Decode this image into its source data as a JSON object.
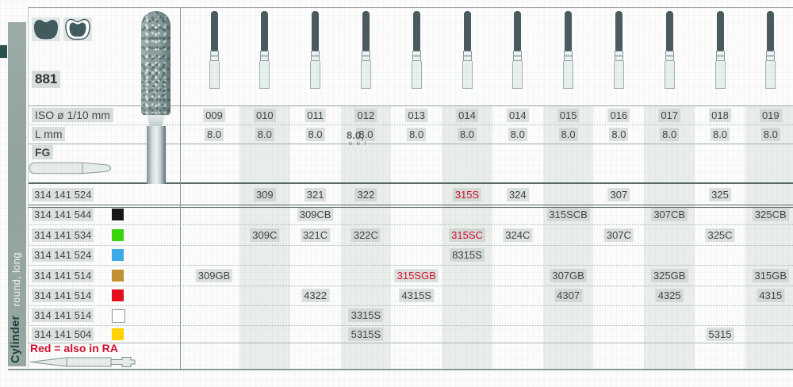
{
  "series": "881",
  "sidebar": {
    "category": "Cylinder",
    "subcategory": "round, long"
  },
  "header": {
    "iso_label": "ISO ø 1/10 mm",
    "l_label": "L mm",
    "shank_label": "FG",
    "iso_values": [
      "009",
      "010",
      "011",
      "012",
      "013",
      "014",
      "014",
      "015",
      "016",
      "017",
      "018",
      "019"
    ],
    "l_values": [
      "8.0",
      "8.0",
      "8.0",
      "8.0",
      "8.0",
      "8.0",
      "8.0",
      "8.0",
      "8.0",
      "8.0",
      "8.0",
      "8.0"
    ]
  },
  "artifacts": {
    "ghost_value": "8.0,",
    "ghost_dots": "o o I"
  },
  "code_rows": [
    {
      "code": "314 141 524",
      "swatch": null,
      "cells": [
        {
          "col": 1,
          "value": "309"
        },
        {
          "col": 2,
          "value": "321"
        },
        {
          "col": 3,
          "value": "322"
        },
        {
          "col": 5,
          "value": "315S",
          "red": true
        },
        {
          "col": 6,
          "value": "324"
        },
        {
          "col": 8,
          "value": "307"
        },
        {
          "col": 10,
          "value": "325"
        }
      ]
    },
    {
      "code": "314 141 544",
      "swatch": "#161616",
      "cells": [
        {
          "col": 2,
          "value": "309CB"
        },
        {
          "col": 7,
          "value": "315SCB"
        },
        {
          "col": 9,
          "value": "307CB"
        },
        {
          "col": 11,
          "value": "325CB"
        }
      ]
    },
    {
      "code": "314 141 534",
      "swatch": "#37d60c",
      "cells": [
        {
          "col": 1,
          "value": "309C"
        },
        {
          "col": 2,
          "value": "321C"
        },
        {
          "col": 3,
          "value": "322C"
        },
        {
          "col": 5,
          "value": "315SC",
          "red": true
        },
        {
          "col": 6,
          "value": "324C"
        },
        {
          "col": 8,
          "value": "307C"
        },
        {
          "col": 10,
          "value": "325C"
        }
      ]
    },
    {
      "code": "314 141 524",
      "swatch": "#3aabe8",
      "cells": [
        {
          "col": 5,
          "value": "8315S"
        }
      ]
    },
    {
      "code": "314 141 514",
      "swatch": "#c3912f",
      "cells": [
        {
          "col": 0,
          "value": "309GB"
        },
        {
          "col": 4,
          "value": "315SGB",
          "red": true
        },
        {
          "col": 7,
          "value": "307GB"
        },
        {
          "col": 9,
          "value": "325GB"
        },
        {
          "col": 11,
          "value": "315GB"
        }
      ]
    },
    {
      "code": "314 141 514",
      "swatch": "#e80b1c",
      "cells": [
        {
          "col": 2,
          "value": "4322"
        },
        {
          "col": 4,
          "value": "4315S"
        },
        {
          "col": 7,
          "value": "4307"
        },
        {
          "col": 9,
          "value": "4325"
        },
        {
          "col": 11,
          "value": "4315"
        }
      ]
    },
    {
      "code": "314 141 514",
      "swatch": "#ffffff",
      "cells": [
        {
          "col": 3,
          "value": "3315S"
        }
      ]
    },
    {
      "code": "314 141 504",
      "swatch": "#ffd400",
      "cells": [
        {
          "col": 3,
          "value": "5315S"
        },
        {
          "col": 10,
          "value": "5315"
        }
      ]
    }
  ],
  "note": "Red = also in RA",
  "colors": {
    "red": "#d40f2e",
    "band": "#e9eeea",
    "dark_teal": "#405a5e",
    "sidebar": "#97a7a3"
  }
}
